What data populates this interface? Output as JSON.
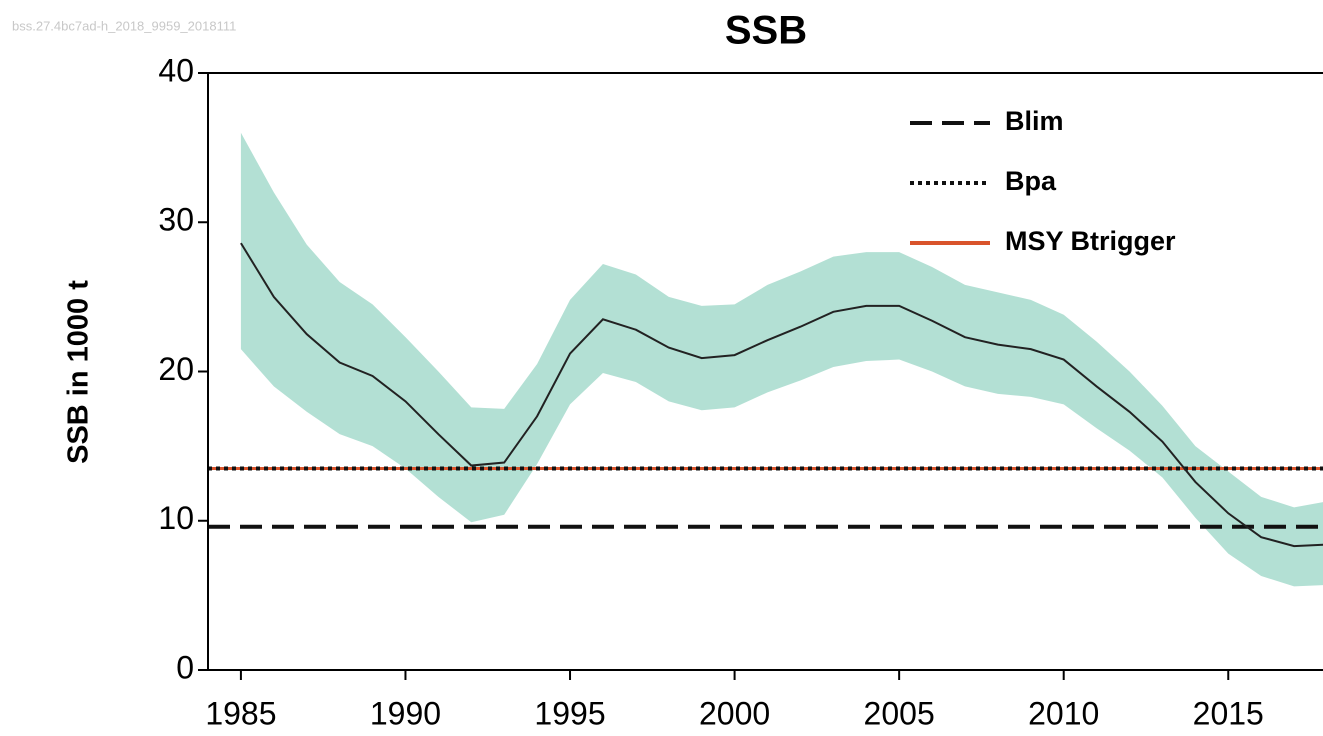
{
  "chart_data": {
    "type": "line",
    "watermark": "bss.27.4bc7ad-h_2018_9959_2018111",
    "title": "SSB",
    "y_label": "SSB in 1000 t",
    "x": [
      1985,
      1986,
      1987,
      1988,
      1989,
      1990,
      1991,
      1992,
      1993,
      1994,
      1995,
      1996,
      1997,
      1998,
      1999,
      2000,
      2001,
      2002,
      2003,
      2004,
      2005,
      2006,
      2007,
      2008,
      2009,
      2010,
      2011,
      2012,
      2013,
      2014,
      2015,
      2016,
      2017,
      2018
    ],
    "values": [
      28.6,
      25,
      22.5,
      20.6,
      19.7,
      18,
      15.8,
      13.7,
      13.9,
      17,
      21.2,
      23.5,
      22.8,
      21.6,
      20.9,
      21.1,
      22.1,
      23,
      24,
      24.4,
      24.4,
      23.4,
      22.3,
      21.8,
      21.5,
      20.8,
      19,
      17.3,
      15.3,
      12.6,
      10.5,
      8.9,
      8.3,
      8.4
    ],
    "upper": [
      36,
      32,
      28.5,
      26,
      24.5,
      22.3,
      20,
      17.6,
      17.5,
      20.5,
      24.8,
      27.2,
      26.5,
      25,
      24.4,
      24.5,
      25.8,
      26.7,
      27.7,
      28,
      28,
      27,
      25.8,
      25.3,
      24.8,
      23.8,
      22,
      20,
      17.7,
      15,
      13.3,
      11.6,
      10.9,
      11.3
    ],
    "lower": [
      21.5,
      19,
      17.3,
      15.8,
      15,
      13.5,
      11.6,
      9.9,
      10.4,
      13.8,
      17.8,
      19.9,
      19.3,
      18,
      17.4,
      17.6,
      18.6,
      19.4,
      20.3,
      20.7,
      20.8,
      20,
      19,
      18.5,
      18.3,
      17.8,
      16.2,
      14.7,
      12.9,
      10.2,
      7.8,
      6.3,
      5.6,
      5.7
    ],
    "line_color": "#222222",
    "band_color": "#b3e0d4",
    "reference_lines": [
      {
        "name": "Blim",
        "value": 9.6,
        "color": "#111111",
        "style": "dashed"
      },
      {
        "name": "Bpa",
        "value": 13.5,
        "color": "#111111",
        "style": "dotted"
      },
      {
        "name": "MSY Btrigger",
        "value": 13.5,
        "color": "#d9542b",
        "style": "solid"
      }
    ],
    "xlim": [
      1984,
      2018
    ],
    "ylim": [
      0,
      40
    ],
    "xticks": [
      1985,
      1990,
      1995,
      2000,
      2005,
      2010,
      2015
    ],
    "yticks": [
      0,
      10,
      20,
      30,
      40
    ],
    "legend": "upper right"
  }
}
